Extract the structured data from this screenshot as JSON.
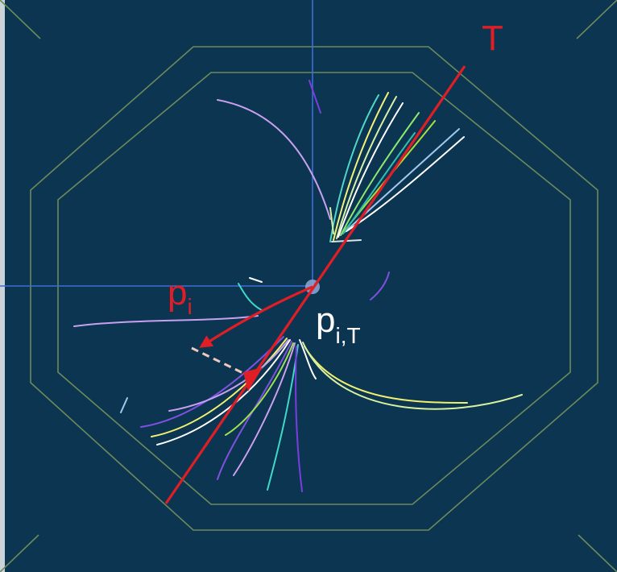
{
  "colors": {
    "background": "#0b3550",
    "detector_outline": "#6d8a5c",
    "axis_lines": "#3c6fd6",
    "thrust_axis": "#e01e26",
    "projection": "#f0c8c0",
    "label_white": "#ffffff"
  },
  "labels": {
    "thrust_axis": "T",
    "momentum_base": "p",
    "momentum_sub": "i",
    "projection_base": "p",
    "projection_sub": "i,T"
  }
}
